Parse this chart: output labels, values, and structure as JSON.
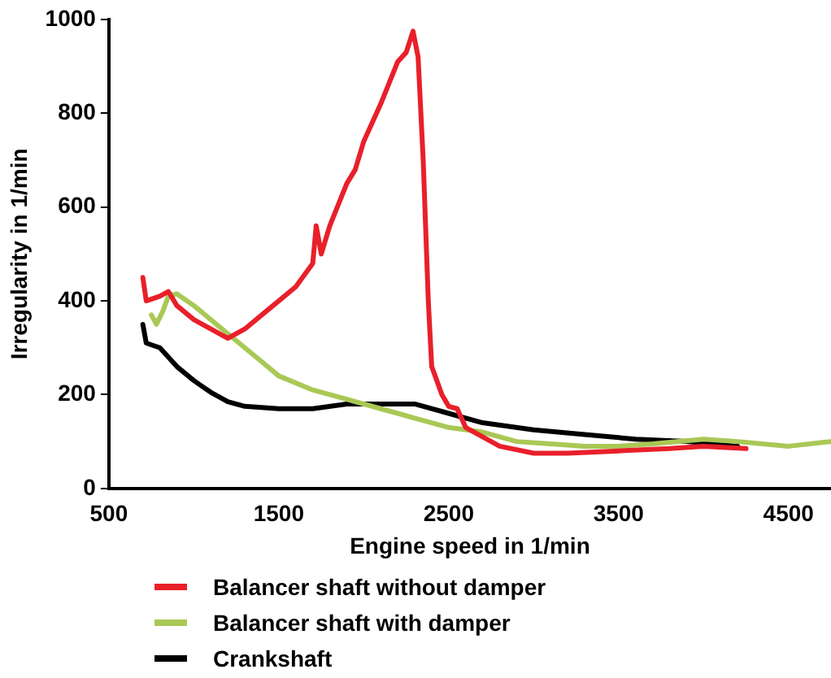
{
  "chart_data": {
    "type": "line",
    "xlabel": "Engine speed in 1/min",
    "ylabel": "Irregularity in 1/min",
    "xlim": [
      500,
      4750
    ],
    "xticks": [
      500,
      1500,
      2500,
      3500,
      4500
    ],
    "ylim": [
      0,
      1000
    ],
    "yticks": [
      0,
      200,
      400,
      600,
      800,
      1000
    ],
    "grid": false,
    "legend": "bottom left",
    "marker": "none",
    "line_style": "solid",
    "series": [
      {
        "name": "Balancer shaft without damper",
        "color": "#e8202a",
        "x": [
          700,
          720,
          800,
          850,
          900,
          1000,
          1100,
          1200,
          1300,
          1400,
          1500,
          1600,
          1700,
          1720,
          1750,
          1800,
          1900,
          1950,
          2000,
          2100,
          2200,
          2250,
          2290,
          2320,
          2350,
          2380,
          2400,
          2430,
          2460,
          2500,
          2550,
          2600,
          2700,
          2800,
          3000,
          3200,
          3500,
          3800,
          4000,
          4250
        ],
        "values": [
          450,
          400,
          410,
          420,
          390,
          360,
          340,
          320,
          340,
          370,
          400,
          430,
          480,
          560,
          500,
          560,
          650,
          680,
          740,
          820,
          910,
          930,
          975,
          920,
          700,
          400,
          260,
          230,
          200,
          175,
          170,
          130,
          110,
          90,
          75,
          75,
          80,
          85,
          90,
          85
        ]
      },
      {
        "name": "Balancer shaft with damper",
        "color": "#a9c855",
        "x": [
          750,
          780,
          820,
          850,
          900,
          1000,
          1200,
          1400,
          1500,
          1700,
          1900,
          2100,
          2300,
          2500,
          2700,
          2900,
          3100,
          3300,
          3500,
          3700,
          4000,
          4200,
          4500,
          4750
        ],
        "values": [
          370,
          350,
          380,
          410,
          415,
          390,
          330,
          270,
          240,
          210,
          190,
          170,
          150,
          130,
          120,
          100,
          95,
          90,
          90,
          95,
          105,
          100,
          90,
          100
        ]
      },
      {
        "name": "Crankshaft",
        "color": "#000000",
        "x": [
          700,
          720,
          800,
          900,
          1000,
          1100,
          1200,
          1300,
          1500,
          1700,
          1900,
          2100,
          2300,
          2500,
          2700,
          3000,
          3300,
          3600,
          3900,
          4200
        ],
        "values": [
          350,
          310,
          300,
          260,
          230,
          205,
          185,
          175,
          170,
          170,
          180,
          180,
          180,
          160,
          140,
          125,
          115,
          105,
          100,
          90
        ]
      }
    ]
  }
}
